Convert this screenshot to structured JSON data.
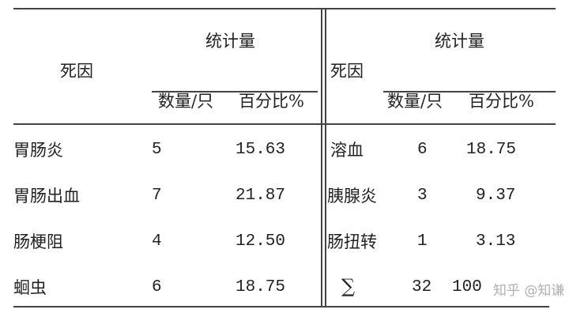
{
  "headers": {
    "cause": "死因",
    "stats": "统计量",
    "count": "数量/只",
    "percent": "百分比%"
  },
  "left_rows": [
    {
      "cause": "胃肠炎",
      "count": "5",
      "percent": "15.63"
    },
    {
      "cause": "胃肠出血",
      "count": "7",
      "percent": "21.87"
    },
    {
      "cause": "肠梗阻",
      "count": "4",
      "percent": "12.50"
    },
    {
      "cause": "蛔虫",
      "count": "6",
      "percent": "18.75"
    }
  ],
  "right_rows": [
    {
      "cause": "溶血",
      "count": "6",
      "percent": "18.75"
    },
    {
      "cause": "胰腺炎",
      "count": "3",
      "percent": "9.37"
    },
    {
      "cause": "肠扭转",
      "count": "1",
      "percent": "3.13"
    },
    {
      "cause": "∑",
      "count": "32",
      "percent": "100"
    }
  ],
  "watermark": "知乎 @知谦"
}
